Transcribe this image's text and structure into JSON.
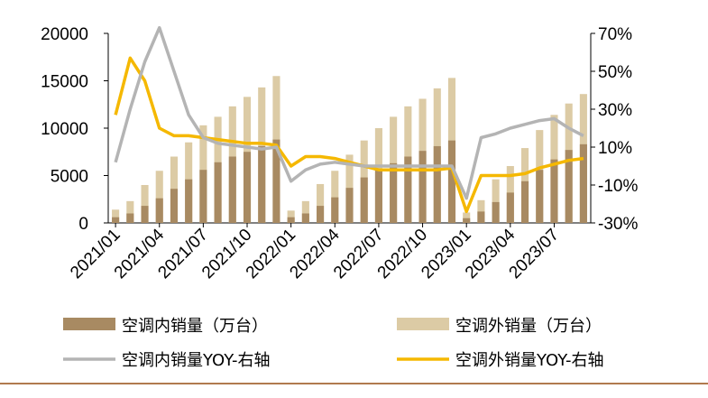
{
  "chart_data": {
    "type": "bar-line",
    "categories": [
      "2021/01",
      null,
      null,
      "2021/04",
      null,
      null,
      "2021/07",
      null,
      null,
      "2021/10",
      null,
      null,
      "2022/01",
      null,
      null,
      "2022/04",
      null,
      null,
      "2022/07",
      null,
      null,
      "2022/10",
      null,
      null,
      "2023/01",
      null,
      null,
      "2023/04",
      null,
      null,
      "2023/07",
      null,
      null
    ],
    "series": [
      {
        "name": "空调内销量（万台）",
        "kind": "bar",
        "color": "#a88a62",
        "values": [
          600,
          1000,
          1800,
          2600,
          3600,
          4600,
          5600,
          6400,
          7000,
          7500,
          8100,
          8800,
          600,
          1000,
          1800,
          2700,
          3700,
          4800,
          5600,
          6300,
          7000,
          7600,
          8100,
          8700,
          500,
          1200,
          2200,
          3200,
          4400,
          5600,
          6700,
          7700,
          8300
        ]
      },
      {
        "name": "空调外销量（万台）",
        "kind": "bar",
        "color": "#dccba5",
        "values": [
          1400,
          2300,
          4000,
          5500,
          7000,
          8500,
          10300,
          11200,
          12300,
          13300,
          14300,
          15500,
          1300,
          2300,
          4100,
          5500,
          7200,
          8700,
          10000,
          11200,
          12300,
          13100,
          14200,
          15300,
          1100,
          2400,
          4600,
          6000,
          7900,
          9800,
          11400,
          12600,
          13600
        ]
      },
      {
        "name": "空调内销量YOY-右轴",
        "kind": "line",
        "axis": "y2",
        "color": "#b4b4b4",
        "values": [
          2,
          30,
          55,
          73,
          50,
          27,
          15,
          12,
          11,
          10,
          9,
          10,
          -8,
          -2,
          1,
          2,
          1,
          0,
          0,
          0,
          0,
          0,
          0,
          0,
          -17,
          15,
          17,
          20,
          22,
          24,
          25,
          20,
          16
        ]
      },
      {
        "name": "空调外销量YOY-右轴",
        "kind": "line",
        "axis": "y2",
        "color": "#f5b800",
        "values": [
          27,
          57,
          45,
          20,
          16,
          16,
          15,
          14,
          13,
          12,
          12,
          11,
          0,
          5,
          5,
          4,
          2,
          0,
          -2,
          -2,
          -2,
          -2,
          -2,
          -1,
          -24,
          -5,
          -5,
          -5,
          -4,
          -1,
          1,
          3,
          4
        ]
      }
    ],
    "ylim": [
      0,
      20000
    ],
    "yticks": [
      0,
      5000,
      10000,
      15000,
      20000
    ],
    "y2lim": [
      -30,
      70
    ],
    "y2ticks": [
      {
        "value": -30,
        "label": "-30%"
      },
      {
        "value": -10,
        "label": "-10%"
      },
      {
        "value": 10,
        "label": "10%"
      },
      {
        "value": 30,
        "label": "30%"
      },
      {
        "value": 50,
        "label": "50%"
      },
      {
        "value": 70,
        "label": "70%"
      }
    ]
  }
}
